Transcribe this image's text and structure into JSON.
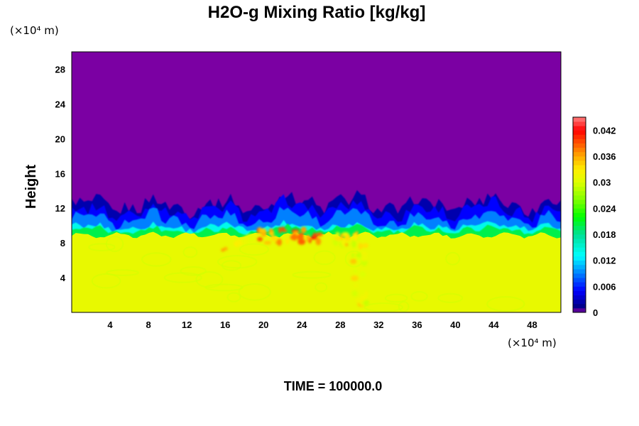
{
  "chart_data": {
    "type": "heatmap",
    "title": "H2O-g Mixing Ratio [kg/kg]",
    "xlabel": "",
    "ylabel": "Height",
    "x_unit": "(×10⁴ m)",
    "y_unit": "(×10⁴ m)",
    "xlim": [
      0,
      51
    ],
    "ylim": [
      0,
      30
    ],
    "xticks": [
      4,
      8,
      12,
      16,
      20,
      24,
      28,
      32,
      36,
      40,
      44,
      48
    ],
    "yticks": [
      4,
      8,
      12,
      16,
      20,
      24,
      28
    ],
    "colorbar": {
      "range": [
        0,
        0.045
      ],
      "tick_values": [
        0,
        0.006,
        0.012,
        0.018,
        0.024,
        0.03,
        0.036,
        0.042
      ],
      "tick_labels": [
        "0",
        "0.006",
        "0.012",
        "0.018",
        "0.024",
        "0.03",
        "0.036",
        "0.042"
      ],
      "colors": [
        "#7f00a0",
        "#00008b",
        "#0000ff",
        "#007fff",
        "#00ffff",
        "#00e0a0",
        "#00ff00",
        "#80ff00",
        "#ddff00",
        "#ffee00",
        "#ffaa00",
        "#ff5500",
        "#ff0000",
        "#ff8080"
      ]
    },
    "background_color": "#7b00a3",
    "regions": [
      {
        "name": "upper layer",
        "height_range": [
          11,
          30
        ],
        "value": 0
      },
      {
        "name": "lower layer",
        "height_range": [
          0,
          9
        ],
        "value": 0.031
      },
      {
        "name": "transition band",
        "height_range": [
          9,
          12
        ],
        "value_range": [
          0.003,
          0.02
        ]
      }
    ],
    "hotspots": [
      {
        "x": 17,
        "y": 7.8,
        "value": 0.037
      },
      {
        "x": 21,
        "y": 8.8,
        "value": 0.04
      },
      {
        "x": 24.5,
        "y": 8.9,
        "value": 0.042
      },
      {
        "x": 29,
        "y": 8.5,
        "value": 0.036
      },
      {
        "x": 30,
        "y": 4.5,
        "value": 0.036
      }
    ]
  },
  "footer": {
    "time_label": "TIME = 100000.0"
  }
}
